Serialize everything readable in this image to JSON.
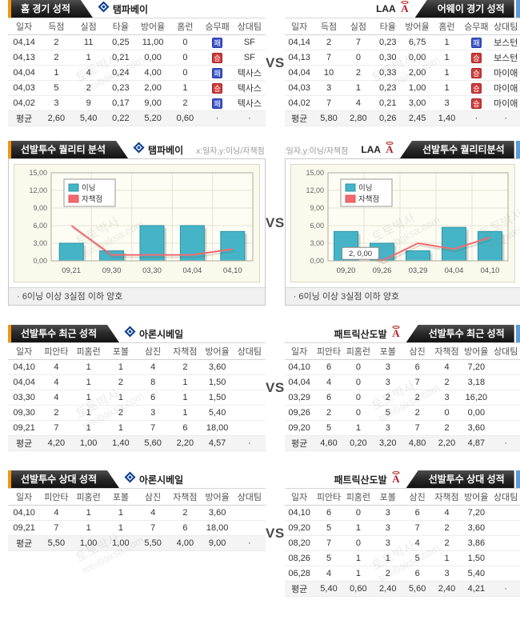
{
  "page": {
    "vs": "VS"
  },
  "watermark": {
    "kr": "토토박사",
    "en": "totobaksa.com"
  },
  "colors": {
    "accent_orange": "#f2970e",
    "accent_blue": "#5b9bd8",
    "bar_teal": "#45b4c6",
    "line_red": "#f4696f",
    "win_badge": "#d03c3c",
    "loss_badge": "#3c55c9"
  },
  "sections": {
    "game": {
      "left": {
        "tab": "홈 경기 성적",
        "team": "탬파베이",
        "table": {
          "headers": [
            "일자",
            "득점",
            "실점",
            "타율",
            "방어율",
            "홈런",
            "승무패",
            "상대팀"
          ],
          "rows": [
            [
              "04,14",
              "2",
              "11",
              "0,25",
              "11,00",
              "0",
              "패",
              "SF"
            ],
            [
              "04,13",
              "2",
              "1",
              "0,21",
              "0,00",
              "0",
              "승",
              "SF"
            ],
            [
              "04,04",
              "1",
              "4",
              "0,24",
              "4,00",
              "0",
              "패",
              "텍사스"
            ],
            [
              "04,03",
              "5",
              "2",
              "0,23",
              "2,00",
              "1",
              "승",
              "텍사스"
            ],
            [
              "04,02",
              "3",
              "9",
              "0,17",
              "9,00",
              "2",
              "패",
              "텍사스"
            ],
            [
              "평균",
              "2,60",
              "5,40",
              "0,22",
              "5,20",
              "0,60",
              "·",
              "·"
            ]
          ]
        }
      },
      "right": {
        "tab": "어웨이 경기 성적",
        "team": "LAA",
        "table": {
          "headers": [
            "일자",
            "득점",
            "실점",
            "타율",
            "방어율",
            "홈런",
            "승무패",
            "상대팀"
          ],
          "rows": [
            [
              "04,14",
              "2",
              "7",
              "0,23",
              "6,75",
              "1",
              "패",
              "보스턴"
            ],
            [
              "04,13",
              "7",
              "0",
              "0,30",
              "0,00",
              "1",
              "승",
              "보스턴"
            ],
            [
              "04,04",
              "10",
              "2",
              "0,33",
              "2,00",
              "1",
              "승",
              "마이애"
            ],
            [
              "04,03",
              "3",
              "1",
              "0,23",
              "1,00",
              "1",
              "승",
              "마이애"
            ],
            [
              "04,02",
              "7",
              "4",
              "0,21",
              "3,00",
              "3",
              "승",
              "마이애"
            ],
            [
              "평균",
              "5,80",
              "2,80",
              "0,26",
              "2,45",
              "1,40",
              "·",
              "·"
            ]
          ]
        }
      }
    },
    "quality": {
      "left": {
        "tab": "선발투수 퀄리티 분석",
        "team": "탬파베이",
        "axis_note": "x:일자,y:이닝/자책점",
        "note": "·  6이닝 이상 3실점 이하 양호"
      },
      "right": {
        "tab": "선발투수 퀄리티분석",
        "team": "LAA",
        "axis_note": "x:일자,y:이닝/자책점",
        "note": "·  6이닝 이상 3실점 이하 양호"
      }
    },
    "recent": {
      "left": {
        "tab": "선발투수 최근 성적",
        "player": "아론시베일",
        "table": {
          "headers": [
            "일자",
            "피안타",
            "피홈런",
            "포볼",
            "삼진",
            "자책점",
            "방어율",
            "상대팀"
          ],
          "rows": [
            [
              "04,10",
              "4",
              "1",
              "1",
              "4",
              "2",
              "3,60",
              ""
            ],
            [
              "04,04",
              "4",
              "1",
              "2",
              "8",
              "1",
              "1,50",
              ""
            ],
            [
              "03,30",
              "4",
              "1",
              "1",
              "6",
              "1",
              "1,50",
              ""
            ],
            [
              "09,30",
              "2",
              "1",
              "2",
              "3",
              "1",
              "5,40",
              ""
            ],
            [
              "09,21",
              "7",
              "1",
              "1",
              "7",
              "6",
              "18,00",
              ""
            ],
            [
              "평균",
              "4,20",
              "1,00",
              "1,40",
              "5,60",
              "2,20",
              "4,57",
              "·"
            ]
          ]
        }
      },
      "right": {
        "tab": "선발투수 최근 성적",
        "player": "패트릭산도발",
        "table": {
          "headers": [
            "일자",
            "피안타",
            "피홈런",
            "포볼",
            "삼진",
            "자책점",
            "방어율",
            "상대팀"
          ],
          "rows": [
            [
              "04,10",
              "6",
              "0",
              "3",
              "6",
              "4",
              "7,20",
              ""
            ],
            [
              "04,04",
              "4",
              "0",
              "3",
              "7",
              "2",
              "3,18",
              ""
            ],
            [
              "03,29",
              "6",
              "0",
              "2",
              "2",
              "3",
              "16,20",
              ""
            ],
            [
              "09,26",
              "2",
              "0",
              "5",
              "2",
              "0",
              "0,00",
              ""
            ],
            [
              "09,20",
              "5",
              "1",
              "3",
              "7",
              "2",
              "3,60",
              ""
            ],
            [
              "평균",
              "4,60",
              "0,20",
              "3,20",
              "4,80",
              "2,20",
              "4,87",
              "·"
            ]
          ]
        }
      }
    },
    "versus": {
      "left": {
        "tab": "선발투수 상대 성적",
        "player": "아론시베일",
        "table": {
          "headers": [
            "일자",
            "피안타",
            "피홈런",
            "포볼",
            "삼진",
            "자책점",
            "방어율",
            "상대팀"
          ],
          "rows": [
            [
              "04,10",
              "4",
              "1",
              "1",
              "4",
              "2",
              "3,60",
              ""
            ],
            [
              "09,21",
              "7",
              "1",
              "1",
              "7",
              "6",
              "18,00",
              ""
            ],
            [
              "평균",
              "5,50",
              "1,00",
              "1,00",
              "5,50",
              "4,00",
              "9,00",
              "·"
            ]
          ]
        }
      },
      "right": {
        "tab": "선발투수 상대 성적",
        "player": "패트릭산도발",
        "table": {
          "headers": [
            "일자",
            "피안타",
            "피홈런",
            "포볼",
            "삼진",
            "자책점",
            "방어율",
            "상대팀"
          ],
          "rows": [
            [
              "04,10",
              "6",
              "0",
              "3",
              "6",
              "4",
              "7,20",
              ""
            ],
            [
              "09,20",
              "5",
              "1",
              "3",
              "7",
              "2",
              "3,60",
              ""
            ],
            [
              "08,20",
              "7",
              "0",
              "3",
              "4",
              "2",
              "3,86",
              ""
            ],
            [
              "08,26",
              "5",
              "1",
              "1",
              "5",
              "1",
              "1,50",
              ""
            ],
            [
              "06,28",
              "4",
              "1",
              "2",
              "6",
              "3",
              "5,40",
              ""
            ],
            [
              "평균",
              "5,40",
              "0,60",
              "2,40",
              "5,60",
              "2,40",
              "4,21",
              "·"
            ]
          ]
        }
      }
    }
  },
  "chart_data": [
    {
      "type": "bar+line",
      "title": "선발투수 퀄리티 분석 - 탬파베이",
      "categories": [
        "09,21",
        "09,30",
        "03,30",
        "04,04",
        "04,10"
      ],
      "series": [
        {
          "name": "이닝",
          "type": "bar",
          "color": "#45b4c6",
          "values": [
            3,
            1.7,
            6,
            6,
            5
          ]
        },
        {
          "name": "자책점",
          "type": "line",
          "color": "#f4696f",
          "values": [
            6,
            1,
            1,
            1,
            2
          ]
        }
      ],
      "xlabel": "일자",
      "ylabel": "이닝/자책점",
      "ylim": [
        0,
        15
      ],
      "yticks": [
        "0,00",
        "3,00",
        "6,00",
        "9,00",
        "12,00",
        "15,00"
      ],
      "grid": true,
      "legend_position": "top-left"
    },
    {
      "type": "bar+line",
      "title": "선발투수 퀄리티분석 - LAA",
      "categories": [
        "09,20",
        "09,26",
        "03,29",
        "04,04",
        "04,10"
      ],
      "series": [
        {
          "name": "이닝",
          "type": "bar",
          "color": "#45b4c6",
          "values": [
            5,
            3,
            1.7,
            5.7,
            5
          ]
        },
        {
          "name": "자책점",
          "type": "line",
          "color": "#f4696f",
          "values": [
            2,
            0,
            3,
            2,
            4
          ]
        }
      ],
      "xlabel": "일자",
      "ylabel": "이닝/자책점",
      "ylim": [
        0,
        15
      ],
      "yticks": [
        "0,00",
        "3,00",
        "6,00",
        "9,00",
        "12,00",
        "15,00"
      ],
      "grid": true,
      "legend_position": "top-left",
      "tooltip": {
        "text": "2, 0,00",
        "x_index": 1,
        "y_value": 1.2
      }
    }
  ]
}
